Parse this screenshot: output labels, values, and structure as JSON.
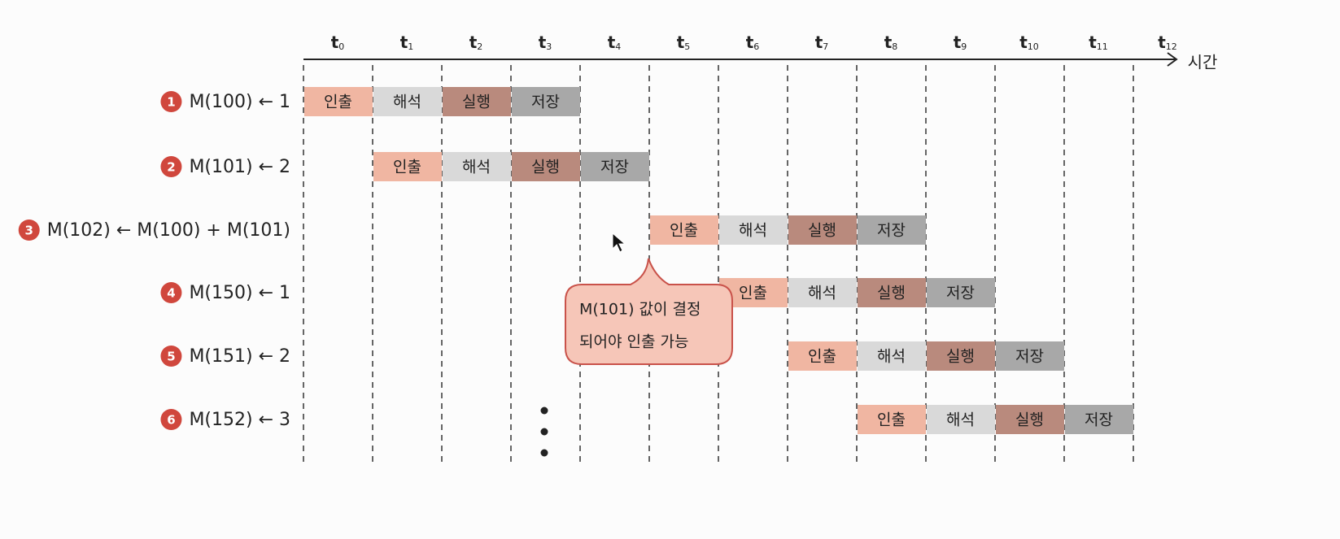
{
  "axis": {
    "times": [
      {
        "base": "t",
        "sub": "0"
      },
      {
        "base": "t",
        "sub": "1"
      },
      {
        "base": "t",
        "sub": "2"
      },
      {
        "base": "t",
        "sub": "3"
      },
      {
        "base": "t",
        "sub": "4"
      },
      {
        "base": "t",
        "sub": "5"
      },
      {
        "base": "t",
        "sub": "6"
      },
      {
        "base": "t",
        "sub": "7"
      },
      {
        "base": "t",
        "sub": "8"
      },
      {
        "base": "t",
        "sub": "9"
      },
      {
        "base": "t",
        "sub": "10"
      },
      {
        "base": "t",
        "sub": "11"
      },
      {
        "base": "t",
        "sub": "12"
      }
    ],
    "label": "시간"
  },
  "stages": [
    "인출",
    "해석",
    "실행",
    "저장"
  ],
  "instructions": [
    {
      "number": "1",
      "text": "M(100) ← 1",
      "start": 0
    },
    {
      "number": "2",
      "text": "M(101) ← 2",
      "start": 1
    },
    {
      "number": "3",
      "text": "M(102) ← M(100) + M(101)",
      "start": 5
    },
    {
      "number": "4",
      "text": "M(150) ← 1",
      "start": 6
    },
    {
      "number": "5",
      "text": "M(151) ← 2",
      "start": 7
    },
    {
      "number": "6",
      "text": "M(152) ← 3",
      "start": 8
    }
  ],
  "callout": {
    "lines": [
      "M(101) 값이 결정",
      "되어야 인출 가능"
    ]
  }
}
